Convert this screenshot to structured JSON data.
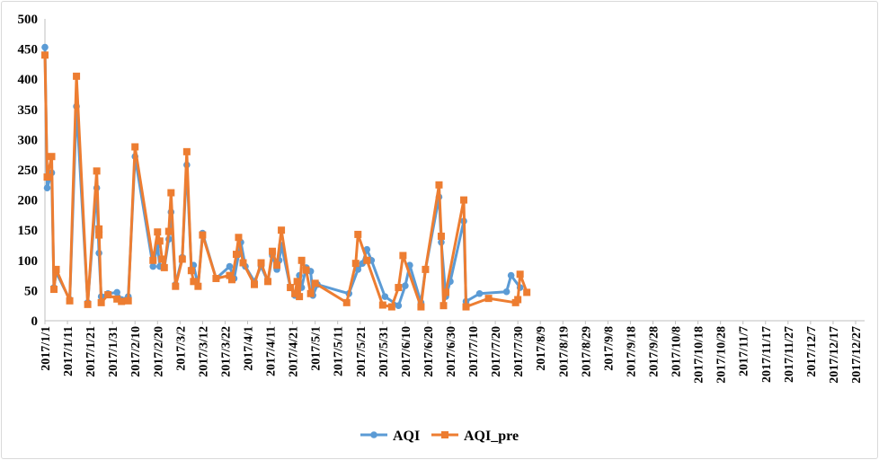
{
  "chart_data": {
    "type": "line",
    "title": "",
    "xlabel": "",
    "ylabel": "",
    "ylim": [
      0,
      500
    ],
    "yticks": [
      "0",
      "50",
      "100",
      "150",
      "200",
      "250",
      "300",
      "350",
      "400",
      "450",
      "500"
    ],
    "xticks": [
      "2017/1/1",
      "2017/1/11",
      "2017/1/21",
      "2017/1/31",
      "2017/2/10",
      "2017/2/20",
      "2017/3/2",
      "2017/3/12",
      "2017/3/22",
      "2017/4/1",
      "2017/4/11",
      "2017/4/21",
      "2017/5/1",
      "2017/5/11",
      "2017/5/21",
      "2017/5/31",
      "2017/6/10",
      "2017/6/20",
      "2017/6/30",
      "2017/7/10",
      "2017/7/20",
      "2017/7/30",
      "2017/8/9",
      "2017/8/19",
      "2017/8/29",
      "2017/9/8",
      "2017/9/18",
      "2017/9/28",
      "2017/10/8",
      "2017/10/18",
      "2017/10/28",
      "2017/11/7",
      "2017/11/17",
      "2017/11/27",
      "2017/12/7",
      "2017/12/17",
      "2017/12/27"
    ],
    "xrange": [
      "2017/1/1",
      "2017/12/31"
    ],
    "grid": false,
    "legend": "bottom",
    "series": [
      {
        "name": "AQI",
        "color": "#5b9bd5",
        "marker": "circle",
        "points": [
          [
            "2017/1/1",
            453
          ],
          [
            "2017/1/2",
            220
          ],
          [
            "2017/1/4",
            245
          ],
          [
            "2017/1/5",
            55
          ],
          [
            "2017/1/6",
            80
          ],
          [
            "2017/1/12",
            35
          ],
          [
            "2017/1/15",
            355
          ],
          [
            "2017/1/20",
            30
          ],
          [
            "2017/1/24",
            220
          ],
          [
            "2017/1/25",
            112
          ],
          [
            "2017/1/26",
            40
          ],
          [
            "2017/1/29",
            45
          ],
          [
            "2017/2/2",
            47
          ],
          [
            "2017/2/4",
            35
          ],
          [
            "2017/2/7",
            40
          ],
          [
            "2017/2/10",
            272
          ],
          [
            "2017/2/18",
            90
          ],
          [
            "2017/2/20",
            125
          ],
          [
            "2017/2/21",
            90
          ],
          [
            "2017/2/23",
            88
          ],
          [
            "2017/2/25",
            135
          ],
          [
            "2017/2/26",
            180
          ],
          [
            "2017/2/28",
            60
          ],
          [
            "2017/3/3",
            105
          ],
          [
            "2017/3/5",
            258
          ],
          [
            "2017/3/7",
            85
          ],
          [
            "2017/3/8",
            92
          ],
          [
            "2017/3/10",
            58
          ],
          [
            "2017/3/12",
            145
          ],
          [
            "2017/3/18",
            70
          ],
          [
            "2017/3/24",
            90
          ],
          [
            "2017/3/26",
            70
          ],
          [
            "2017/3/28",
            110
          ],
          [
            "2017/3/29",
            130
          ],
          [
            "2017/3/31",
            90
          ],
          [
            "2017/4/4",
            65
          ],
          [
            "2017/4/7",
            90
          ],
          [
            "2017/4/10",
            65
          ],
          [
            "2017/4/12",
            108
          ],
          [
            "2017/4/14",
            85
          ],
          [
            "2017/4/15",
            100
          ],
          [
            "2017/4/16",
            125
          ],
          [
            "2017/4/20",
            55
          ],
          [
            "2017/4/22",
            42
          ],
          [
            "2017/4/24",
            75
          ],
          [
            "2017/4/25",
            55
          ],
          [
            "2017/4/27",
            88
          ],
          [
            "2017/4/29",
            82
          ],
          [
            "2017/4/30",
            42
          ],
          [
            "2017/5/2",
            60
          ],
          [
            "2017/5/16",
            45
          ],
          [
            "2017/5/20",
            85
          ],
          [
            "2017/5/22",
            95
          ],
          [
            "2017/5/24",
            118
          ],
          [
            "2017/5/26",
            100
          ],
          [
            "2017/6/1",
            40
          ],
          [
            "2017/6/7",
            25
          ],
          [
            "2017/6/10",
            58
          ],
          [
            "2017/6/12",
            92
          ],
          [
            "2017/6/17",
            30
          ],
          [
            "2017/6/19",
            85
          ],
          [
            "2017/6/25",
            205
          ],
          [
            "2017/6/26",
            130
          ],
          [
            "2017/6/28",
            40
          ],
          [
            "2017/6/30",
            65
          ],
          [
            "2017/7/6",
            165
          ],
          [
            "2017/7/7",
            32
          ],
          [
            "2017/7/13",
            45
          ],
          [
            "2017/7/25",
            48
          ],
          [
            "2017/7/27",
            75
          ],
          [
            "2017/7/31",
            55
          ]
        ]
      },
      {
        "name": "AQI_pre",
        "color": "#ed7d31",
        "marker": "square",
        "points": [
          [
            "2017/1/1",
            440
          ],
          [
            "2017/1/2",
            238
          ],
          [
            "2017/1/4",
            272
          ],
          [
            "2017/1/5",
            52
          ],
          [
            "2017/1/6",
            85
          ],
          [
            "2017/1/12",
            33
          ],
          [
            "2017/1/15",
            405
          ],
          [
            "2017/1/20",
            27
          ],
          [
            "2017/1/24",
            248
          ],
          [
            "2017/1/25",
            142
          ],
          [
            "2017/1/25",
            152
          ],
          [
            "2017/1/26",
            30
          ],
          [
            "2017/1/29",
            43
          ],
          [
            "2017/2/2",
            36
          ],
          [
            "2017/2/4",
            32
          ],
          [
            "2017/2/7",
            33
          ],
          [
            "2017/2/10",
            288
          ],
          [
            "2017/2/18",
            100
          ],
          [
            "2017/2/20",
            147
          ],
          [
            "2017/2/21",
            132
          ],
          [
            "2017/2/22",
            102
          ],
          [
            "2017/2/23",
            88
          ],
          [
            "2017/2/25",
            148
          ],
          [
            "2017/2/26",
            212
          ],
          [
            "2017/2/28",
            57
          ],
          [
            "2017/3/3",
            102
          ],
          [
            "2017/3/5",
            280
          ],
          [
            "2017/3/7",
            83
          ],
          [
            "2017/3/8",
            65
          ],
          [
            "2017/3/10",
            57
          ],
          [
            "2017/3/12",
            142
          ],
          [
            "2017/3/18",
            70
          ],
          [
            "2017/3/24",
            75
          ],
          [
            "2017/3/25",
            68
          ],
          [
            "2017/3/27",
            110
          ],
          [
            "2017/3/28",
            138
          ],
          [
            "2017/3/30",
            96
          ],
          [
            "2017/4/4",
            60
          ],
          [
            "2017/4/7",
            96
          ],
          [
            "2017/4/10",
            65
          ],
          [
            "2017/4/12",
            115
          ],
          [
            "2017/4/14",
            92
          ],
          [
            "2017/4/16",
            150
          ],
          [
            "2017/4/20",
            55
          ],
          [
            "2017/4/22",
            45
          ],
          [
            "2017/4/23",
            65
          ],
          [
            "2017/4/24",
            40
          ],
          [
            "2017/4/25",
            100
          ],
          [
            "2017/4/27",
            84
          ],
          [
            "2017/4/29",
            45
          ],
          [
            "2017/5/1",
            62
          ],
          [
            "2017/5/15",
            30
          ],
          [
            "2017/5/19",
            95
          ],
          [
            "2017/5/20",
            143
          ],
          [
            "2017/5/24",
            100
          ],
          [
            "2017/5/31",
            26
          ],
          [
            "2017/6/4",
            23
          ],
          [
            "2017/6/7",
            55
          ],
          [
            "2017/6/9",
            108
          ],
          [
            "2017/6/17",
            23
          ],
          [
            "2017/6/19",
            85
          ],
          [
            "2017/6/25",
            225
          ],
          [
            "2017/6/26",
            140
          ],
          [
            "2017/6/27",
            25
          ],
          [
            "2017/6/28",
            47
          ],
          [
            "2017/7/6",
            200
          ],
          [
            "2017/7/7",
            23
          ],
          [
            "2017/7/17",
            37
          ],
          [
            "2017/7/29",
            30
          ],
          [
            "2017/7/30",
            35
          ],
          [
            "2017/7/31",
            77
          ],
          [
            "2017/8/3",
            47
          ]
        ]
      }
    ]
  }
}
